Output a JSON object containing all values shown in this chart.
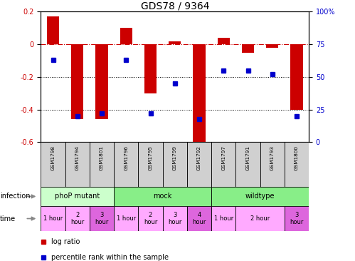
{
  "title": "GDS78 / 9364",
  "samples": [
    "GSM1798",
    "GSM1794",
    "GSM1801",
    "GSM1796",
    "GSM1795",
    "GSM1799",
    "GSM1792",
    "GSM1797",
    "GSM1791",
    "GSM1793",
    "GSM1800"
  ],
  "log_ratio": [
    0.17,
    -0.46,
    -0.46,
    0.1,
    -0.3,
    0.02,
    -0.6,
    0.04,
    -0.05,
    -0.02,
    -0.4
  ],
  "percentile": [
    63,
    20,
    22,
    63,
    22,
    45,
    18,
    55,
    55,
    52,
    20
  ],
  "ylim_left": [
    -0.6,
    0.2
  ],
  "ylim_right": [
    0,
    100
  ],
  "yticks_left": [
    -0.6,
    -0.4,
    -0.2,
    0.0,
    0.2
  ],
  "yticks_right": [
    0,
    25,
    50,
    75,
    100
  ],
  "ytick_right_labels": [
    "0",
    "25",
    "50",
    "75",
    "100%"
  ],
  "bar_color": "#cc0000",
  "dot_color": "#0000cc",
  "hline_color": "#cc0000",
  "dotted_color": "#000000",
  "bg_color": "#ffffff",
  "infection_phop_color": "#ccffcc",
  "infection_mock_color": "#88ee88",
  "infection_wild_color": "#88ee88",
  "time_pink": "#ffaaff",
  "time_magenta": "#dd66dd",
  "xticklabel_bg": "#cccccc",
  "label_fontsize": 7,
  "tick_fontsize": 7,
  "title_fontsize": 10,
  "infection_groups": [
    {
      "label": "phoP mutant",
      "start": 0,
      "end": 3,
      "color": "#ccffcc"
    },
    {
      "label": "mock",
      "start": 3,
      "end": 7,
      "color": "#88ee88"
    },
    {
      "label": "wildtype",
      "start": 7,
      "end": 11,
      "color": "#88ee88"
    }
  ],
  "time_data": [
    {
      "label": "1 hour",
      "start": 0,
      "end": 1,
      "highlight": false
    },
    {
      "label": "2\nhour",
      "start": 1,
      "end": 2,
      "highlight": false
    },
    {
      "label": "3\nhour",
      "start": 2,
      "end": 3,
      "highlight": true
    },
    {
      "label": "1 hour",
      "start": 3,
      "end": 4,
      "highlight": false
    },
    {
      "label": "2\nhour",
      "start": 4,
      "end": 5,
      "highlight": false
    },
    {
      "label": "3\nhour",
      "start": 5,
      "end": 6,
      "highlight": false
    },
    {
      "label": "4\nhour",
      "start": 6,
      "end": 7,
      "highlight": true
    },
    {
      "label": "1 hour",
      "start": 7,
      "end": 8,
      "highlight": false
    },
    {
      "label": "2 hour",
      "start": 8,
      "end": 10,
      "highlight": false
    },
    {
      "label": "3\nhour",
      "start": 10,
      "end": 11,
      "highlight": true
    }
  ]
}
